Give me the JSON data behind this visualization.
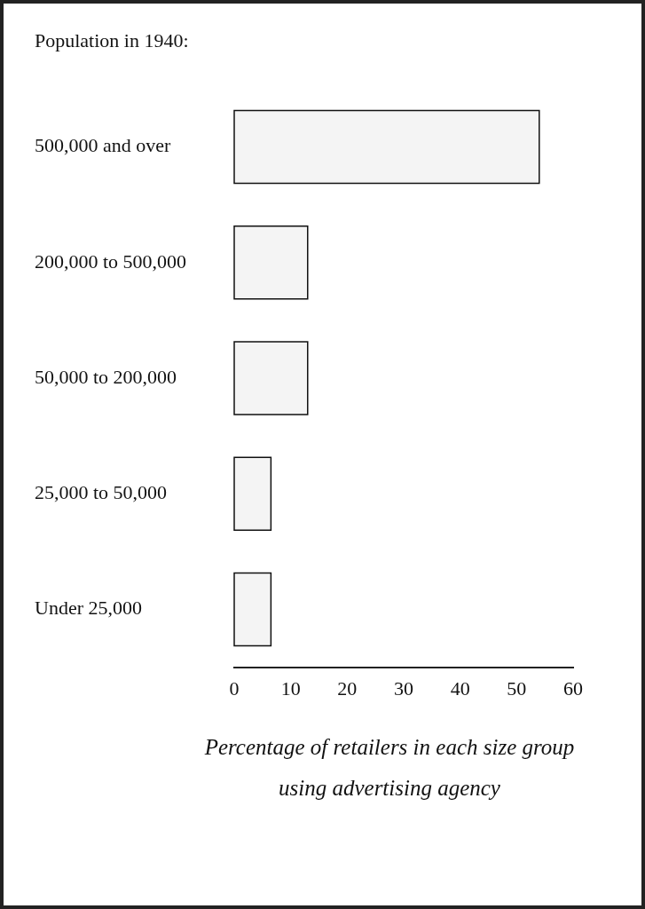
{
  "chart_data": {
    "type": "bar",
    "orientation": "horizontal",
    "title": "Population in 1940:",
    "xlabel": "Percentage of retailers in each size group using advertising agency",
    "categories": [
      "500,000 and over",
      "200,000 to 500,000",
      "50,000 to 200,000",
      "25,000 to 50,000",
      "Under 25,000"
    ],
    "values": [
      54,
      13,
      13,
      6.5,
      6.5
    ],
    "color": "#f4f4f4",
    "xlim": [
      0,
      60
    ],
    "xticks": [
      0,
      10,
      20,
      30,
      40,
      50,
      60
    ],
    "grid": false,
    "legend": false
  }
}
